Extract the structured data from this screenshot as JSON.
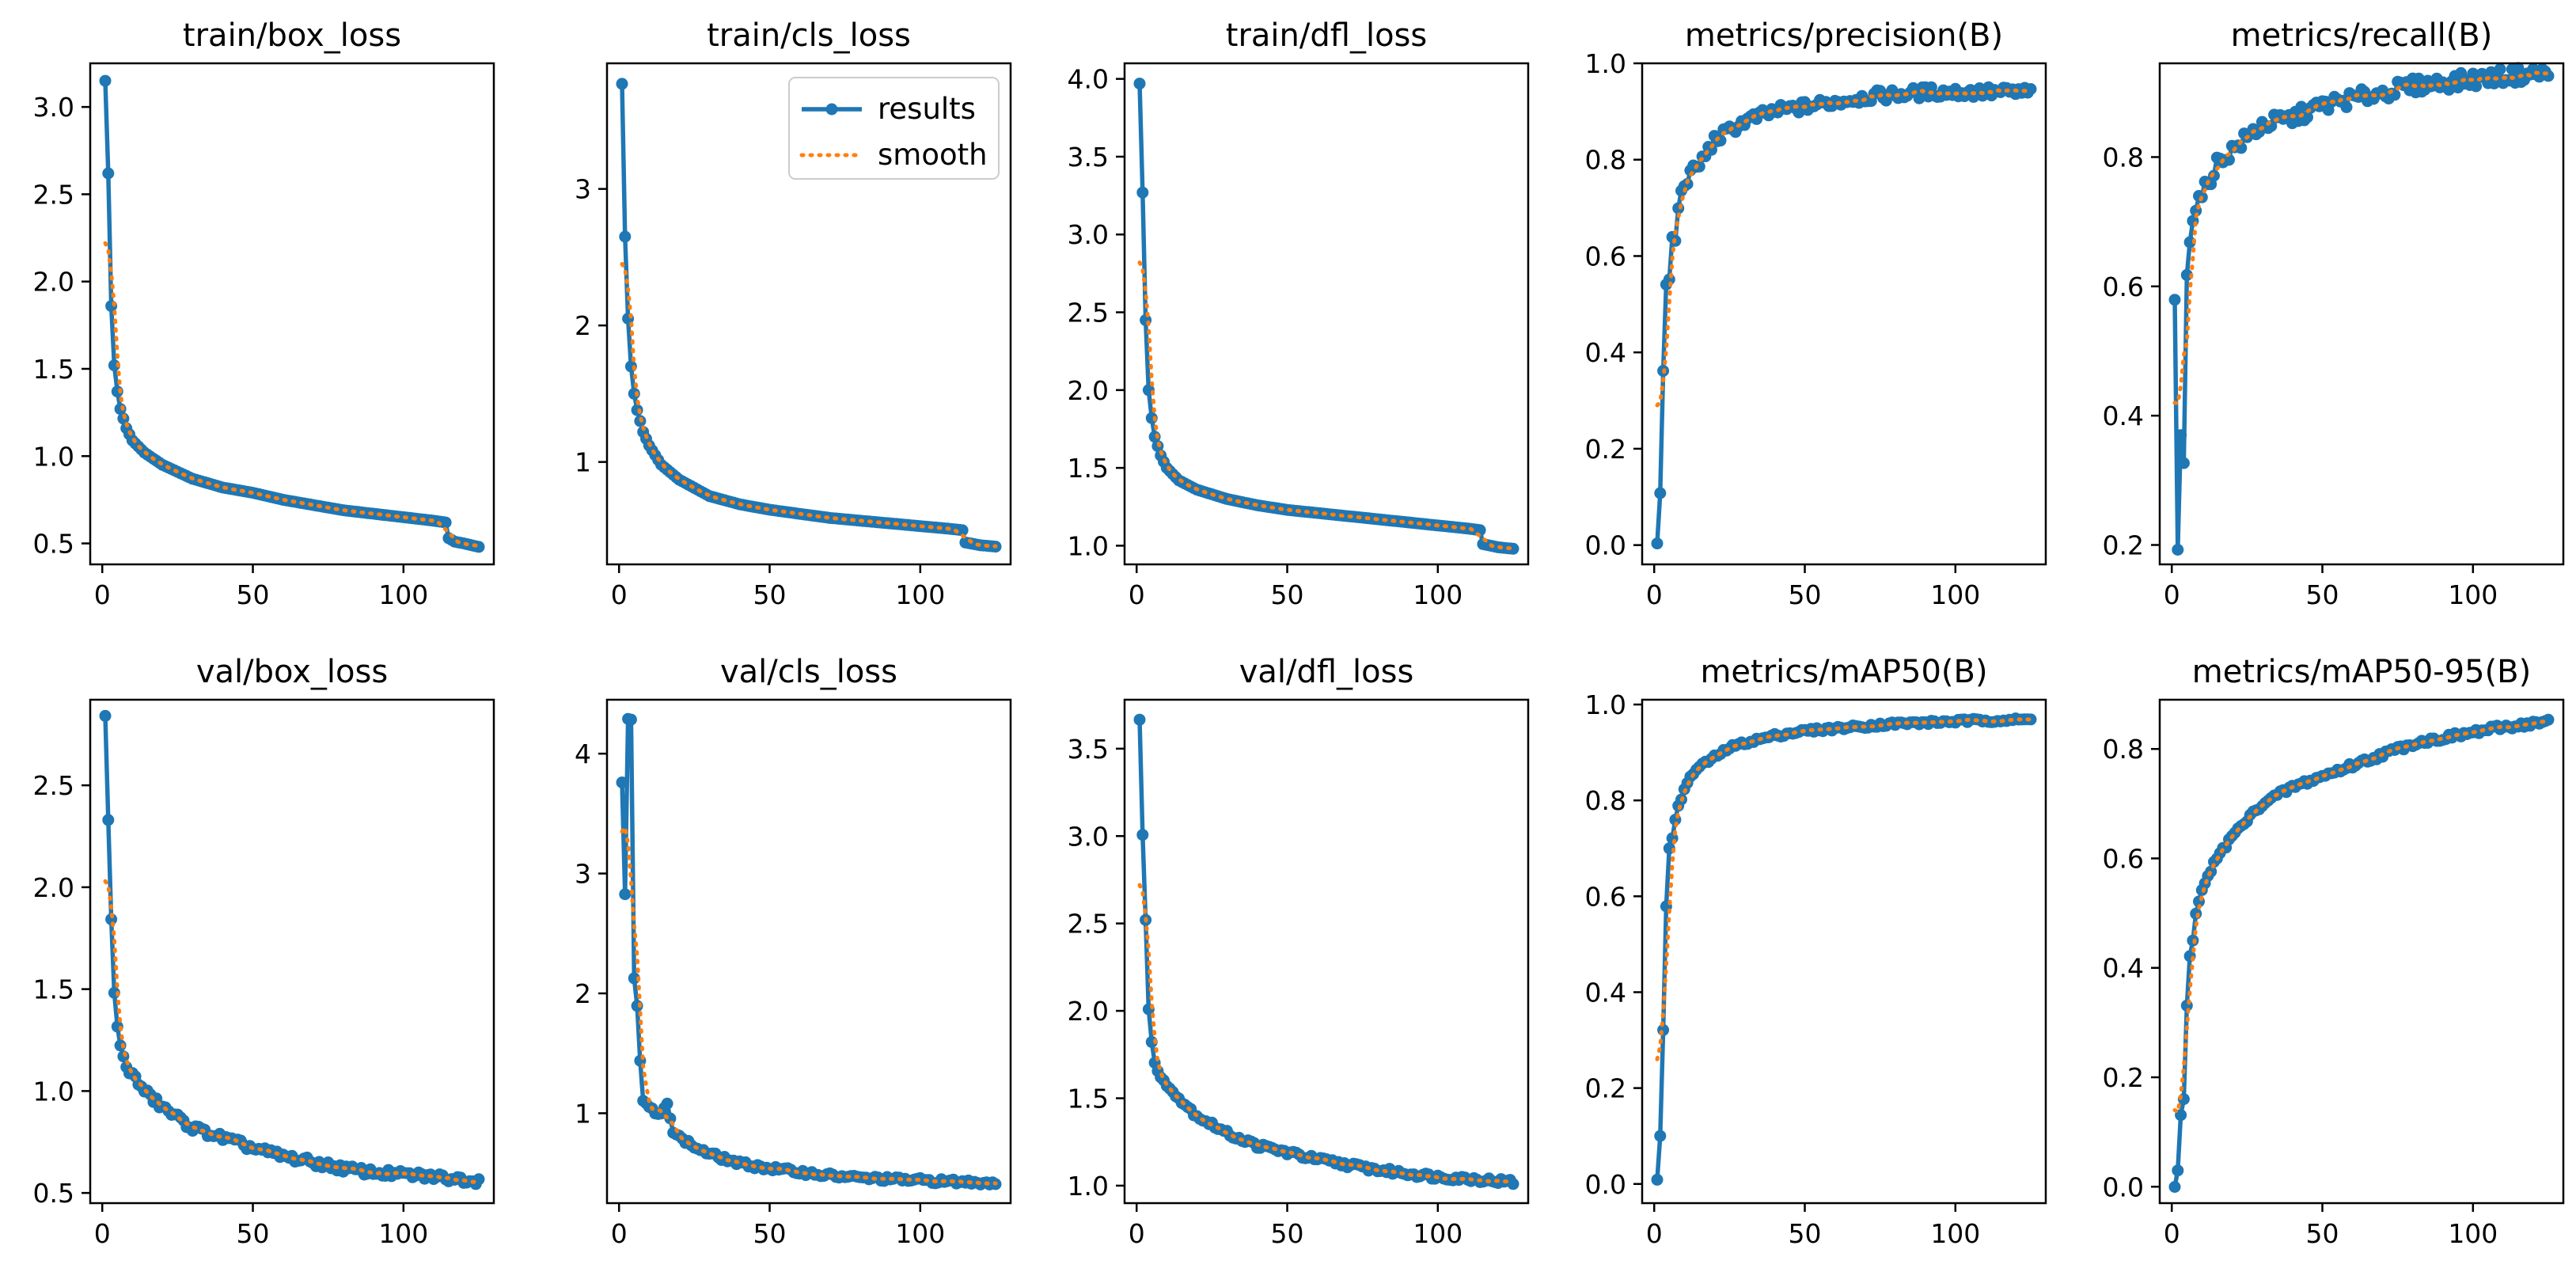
{
  "colors": {
    "results": "#1f77b4",
    "smooth": "#ff7f0e"
  },
  "legend": {
    "placement": "top-right",
    "subplot": 1,
    "entries": [
      "results",
      "smooth"
    ]
  },
  "chart_data": [
    {
      "type": "line",
      "title": "train/box_loss",
      "xlabel": "",
      "ylabel": "",
      "xlim": [
        -4,
        130
      ],
      "ylim": [
        0.38,
        3.25
      ],
      "xticks": [
        0,
        50,
        100
      ],
      "yticks": [
        0.5,
        1.0,
        1.5,
        2.0,
        2.5,
        3.0
      ],
      "yticklabels": [
        "0.5",
        "1.0",
        "1.5",
        "2.0",
        "2.5",
        "3.0"
      ],
      "anchors": [
        [
          1,
          3.15
        ],
        [
          2,
          2.62
        ],
        [
          3,
          1.86
        ],
        [
          4,
          1.52
        ],
        [
          5,
          1.37
        ],
        [
          6,
          1.27
        ],
        [
          8,
          1.16
        ],
        [
          10,
          1.09
        ],
        [
          14,
          1.02
        ],
        [
          20,
          0.95
        ],
        [
          30,
          0.87
        ],
        [
          40,
          0.82
        ],
        [
          50,
          0.79
        ],
        [
          60,
          0.75
        ],
        [
          70,
          0.72
        ],
        [
          80,
          0.69
        ],
        [
          90,
          0.67
        ],
        [
          100,
          0.65
        ],
        [
          110,
          0.63
        ],
        [
          114,
          0.62
        ],
        [
          115,
          0.53
        ],
        [
          117,
          0.51
        ],
        [
          120,
          0.5
        ],
        [
          125,
          0.48
        ]
      ],
      "smooth_start": 2.22,
      "noise": 0
    },
    {
      "type": "line",
      "title": "train/cls_loss",
      "xlabel": "",
      "ylabel": "",
      "xlim": [
        -4,
        130
      ],
      "ylim": [
        0.25,
        3.92
      ],
      "xticks": [
        0,
        50,
        100
      ],
      "yticks": [
        1,
        2,
        3
      ],
      "yticklabels": [
        "1",
        "2",
        "3"
      ],
      "anchors": [
        [
          1,
          3.77
        ],
        [
          2,
          2.65
        ],
        [
          3,
          2.05
        ],
        [
          4,
          1.7
        ],
        [
          5,
          1.5
        ],
        [
          6,
          1.38
        ],
        [
          8,
          1.22
        ],
        [
          10,
          1.12
        ],
        [
          14,
          0.98
        ],
        [
          20,
          0.87
        ],
        [
          30,
          0.75
        ],
        [
          40,
          0.69
        ],
        [
          50,
          0.65
        ],
        [
          60,
          0.62
        ],
        [
          70,
          0.59
        ],
        [
          80,
          0.57
        ],
        [
          90,
          0.55
        ],
        [
          100,
          0.53
        ],
        [
          110,
          0.51
        ],
        [
          114,
          0.5
        ],
        [
          115,
          0.41
        ],
        [
          120,
          0.39
        ],
        [
          125,
          0.38
        ]
      ],
      "smooth_start": 2.45,
      "noise": 0
    },
    {
      "type": "line",
      "title": "train/dfl_loss",
      "xlabel": "",
      "ylabel": "",
      "xlim": [
        -4,
        130
      ],
      "ylim": [
        0.88,
        4.1
      ],
      "xticks": [
        0,
        50,
        100
      ],
      "yticks": [
        1.0,
        1.5,
        2.0,
        2.5,
        3.0,
        3.5,
        4.0
      ],
      "yticklabels": [
        "1.0",
        "1.5",
        "2.0",
        "2.5",
        "3.0",
        "3.5",
        "4.0"
      ],
      "anchors": [
        [
          1,
          3.97
        ],
        [
          2,
          3.27
        ],
        [
          3,
          2.45
        ],
        [
          4,
          2.0
        ],
        [
          5,
          1.82
        ],
        [
          6,
          1.7
        ],
        [
          8,
          1.58
        ],
        [
          10,
          1.5
        ],
        [
          14,
          1.42
        ],
        [
          20,
          1.36
        ],
        [
          30,
          1.3
        ],
        [
          40,
          1.26
        ],
        [
          50,
          1.23
        ],
        [
          60,
          1.21
        ],
        [
          70,
          1.19
        ],
        [
          80,
          1.17
        ],
        [
          90,
          1.15
        ],
        [
          100,
          1.13
        ],
        [
          110,
          1.11
        ],
        [
          114,
          1.1
        ],
        [
          115,
          1.01
        ],
        [
          120,
          0.99
        ],
        [
          125,
          0.98
        ]
      ],
      "smooth_start": 2.82,
      "noise": 0
    },
    {
      "type": "line",
      "title": "metrics/precision(B)",
      "xlabel": "",
      "ylabel": "",
      "xlim": [
        -4,
        130
      ],
      "ylim": [
        -0.04,
        1.0
      ],
      "xticks": [
        0,
        50,
        100
      ],
      "yticks": [
        0.0,
        0.2,
        0.4,
        0.6,
        0.8,
        1.0
      ],
      "yticklabels": [
        "0.0",
        "0.2",
        "0.4",
        "0.6",
        "0.8",
        "1.0"
      ],
      "anchors": [
        [
          1,
          0.0
        ],
        [
          2,
          0.11
        ],
        [
          3,
          0.36
        ],
        [
          4,
          0.54
        ],
        [
          5,
          0.55
        ],
        [
          6,
          0.64
        ],
        [
          7,
          0.63
        ],
        [
          8,
          0.7
        ],
        [
          9,
          0.73
        ],
        [
          10,
          0.75
        ],
        [
          12,
          0.77
        ],
        [
          15,
          0.79
        ],
        [
          20,
          0.84
        ],
        [
          25,
          0.86
        ],
        [
          30,
          0.88
        ],
        [
          40,
          0.9
        ],
        [
          50,
          0.91
        ],
        [
          60,
          0.92
        ],
        [
          70,
          0.93
        ],
        [
          80,
          0.935
        ],
        [
          90,
          0.94
        ],
        [
          100,
          0.94
        ],
        [
          110,
          0.94
        ],
        [
          125,
          0.94
        ]
      ],
      "smooth_start": 0.29,
      "noise": 0.012
    },
    {
      "type": "line",
      "title": "metrics/recall(B)",
      "xlabel": "",
      "ylabel": "",
      "xlim": [
        -4,
        130
      ],
      "ylim": [
        0.17,
        0.945
      ],
      "xticks": [
        0,
        50,
        100
      ],
      "yticks": [
        0.2,
        0.4,
        0.6,
        0.8
      ],
      "yticklabels": [
        "0.2",
        "0.4",
        "0.6",
        "0.8"
      ],
      "anchors": [
        [
          1,
          0.58
        ],
        [
          2,
          0.19
        ],
        [
          3,
          0.37
        ],
        [
          4,
          0.33
        ],
        [
          5,
          0.62
        ],
        [
          6,
          0.67
        ],
        [
          7,
          0.7
        ],
        [
          8,
          0.72
        ],
        [
          10,
          0.74
        ],
        [
          12,
          0.76
        ],
        [
          15,
          0.79
        ],
        [
          20,
          0.81
        ],
        [
          25,
          0.83
        ],
        [
          30,
          0.85
        ],
        [
          40,
          0.86
        ],
        [
          50,
          0.88
        ],
        [
          60,
          0.89
        ],
        [
          70,
          0.9
        ],
        [
          80,
          0.91
        ],
        [
          90,
          0.915
        ],
        [
          100,
          0.92
        ],
        [
          110,
          0.925
        ],
        [
          125,
          0.93
        ]
      ],
      "smooth_start": 0.42,
      "noise": 0.012
    },
    {
      "type": "line",
      "title": "val/box_loss",
      "xlabel": "",
      "ylabel": "",
      "xlim": [
        -4,
        130
      ],
      "ylim": [
        0.45,
        2.92
      ],
      "xticks": [
        0,
        50,
        100
      ],
      "yticks": [
        0.5,
        1.0,
        1.5,
        2.0,
        2.5
      ],
      "yticklabels": [
        "0.5",
        "1.0",
        "1.5",
        "2.0",
        "2.5"
      ],
      "anchors": [
        [
          1,
          2.84
        ],
        [
          2,
          2.33
        ],
        [
          3,
          1.84
        ],
        [
          4,
          1.48
        ],
        [
          5,
          1.32
        ],
        [
          6,
          1.22
        ],
        [
          8,
          1.12
        ],
        [
          10,
          1.08
        ],
        [
          12,
          1.04
        ],
        [
          14,
          1.0
        ],
        [
          20,
          0.92
        ],
        [
          30,
          0.82
        ],
        [
          40,
          0.77
        ],
        [
          50,
          0.72
        ],
        [
          60,
          0.68
        ],
        [
          70,
          0.65
        ],
        [
          80,
          0.62
        ],
        [
          90,
          0.6
        ],
        [
          100,
          0.59
        ],
        [
          110,
          0.58
        ],
        [
          125,
          0.56
        ]
      ],
      "smooth_start": 2.03,
      "noise": 0.018
    },
    {
      "type": "line",
      "title": "val/cls_loss",
      "xlabel": "",
      "ylabel": "",
      "xlim": [
        -4,
        130
      ],
      "ylim": [
        0.25,
        4.45
      ],
      "xticks": [
        0,
        50,
        100
      ],
      "yticks": [
        1,
        2,
        3,
        4
      ],
      "yticklabels": [
        "1",
        "2",
        "3",
        "4"
      ],
      "anchors": [
        [
          1,
          3.76
        ],
        [
          2,
          2.83
        ],
        [
          3,
          4.29
        ],
        [
          4,
          4.29
        ],
        [
          5,
          2.13
        ],
        [
          6,
          1.9
        ],
        [
          7,
          1.44
        ],
        [
          8,
          1.1
        ],
        [
          10,
          1.05
        ],
        [
          12,
          1.0
        ],
        [
          14,
          0.98
        ],
        [
          16,
          1.1
        ],
        [
          18,
          0.85
        ],
        [
          20,
          0.8
        ],
        [
          25,
          0.72
        ],
        [
          30,
          0.66
        ],
        [
          40,
          0.58
        ],
        [
          50,
          0.54
        ],
        [
          60,
          0.51
        ],
        [
          70,
          0.48
        ],
        [
          80,
          0.46
        ],
        [
          90,
          0.45
        ],
        [
          100,
          0.44
        ],
        [
          110,
          0.43
        ],
        [
          125,
          0.42
        ]
      ],
      "smooth_start": 3.35,
      "noise": 0.02
    },
    {
      "type": "line",
      "title": "val/dfl_loss",
      "xlabel": "",
      "ylabel": "",
      "xlim": [
        -4,
        130
      ],
      "ylim": [
        0.9,
        3.78
      ],
      "xticks": [
        0,
        50,
        100
      ],
      "yticks": [
        1.0,
        1.5,
        2.0,
        2.5,
        3.0,
        3.5
      ],
      "yticklabels": [
        "1.0",
        "1.5",
        "2.0",
        "2.5",
        "3.0",
        "3.5"
      ],
      "anchors": [
        [
          1,
          3.67
        ],
        [
          2,
          3.01
        ],
        [
          3,
          2.52
        ],
        [
          4,
          2.01
        ],
        [
          5,
          1.82
        ],
        [
          6,
          1.7
        ],
        [
          8,
          1.62
        ],
        [
          10,
          1.57
        ],
        [
          12,
          1.55
        ],
        [
          14,
          1.5
        ],
        [
          20,
          1.4
        ],
        [
          30,
          1.3
        ],
        [
          40,
          1.23
        ],
        [
          50,
          1.19
        ],
        [
          60,
          1.15
        ],
        [
          70,
          1.12
        ],
        [
          80,
          1.09
        ],
        [
          90,
          1.07
        ],
        [
          100,
          1.05
        ],
        [
          110,
          1.04
        ],
        [
          125,
          1.02
        ]
      ],
      "smooth_start": 2.72,
      "noise": 0.015
    },
    {
      "type": "line",
      "title": "metrics/mAP50(B)",
      "xlabel": "",
      "ylabel": "",
      "xlim": [
        -4,
        130
      ],
      "ylim": [
        -0.04,
        1.01
      ],
      "xticks": [
        0,
        50,
        100
      ],
      "yticks": [
        0.0,
        0.2,
        0.4,
        0.6,
        0.8,
        1.0
      ],
      "yticklabels": [
        "0.0",
        "0.2",
        "0.4",
        "0.6",
        "0.8",
        "1.0"
      ],
      "anchors": [
        [
          1,
          0.01
        ],
        [
          2,
          0.1
        ],
        [
          3,
          0.32
        ],
        [
          4,
          0.58
        ],
        [
          5,
          0.7
        ],
        [
          6,
          0.72
        ],
        [
          7,
          0.76
        ],
        [
          8,
          0.79
        ],
        [
          10,
          0.82
        ],
        [
          12,
          0.85
        ],
        [
          15,
          0.87
        ],
        [
          20,
          0.89
        ],
        [
          25,
          0.91
        ],
        [
          30,
          0.92
        ],
        [
          40,
          0.935
        ],
        [
          50,
          0.945
        ],
        [
          60,
          0.95
        ],
        [
          70,
          0.955
        ],
        [
          80,
          0.96
        ],
        [
          90,
          0.962
        ],
        [
          100,
          0.965
        ],
        [
          110,
          0.967
        ],
        [
          125,
          0.968
        ]
      ],
      "smooth_start": 0.26,
      "noise": 0.004
    },
    {
      "type": "line",
      "title": "metrics/mAP50-95(B)",
      "xlabel": "",
      "ylabel": "",
      "xlim": [
        -4,
        130
      ],
      "ylim": [
        -0.03,
        0.89
      ],
      "xticks": [
        0,
        50,
        100
      ],
      "yticks": [
        0.0,
        0.2,
        0.4,
        0.6,
        0.8
      ],
      "yticklabels": [
        "0.0",
        "0.2",
        "0.4",
        "0.6",
        "0.8"
      ],
      "anchors": [
        [
          1,
          0.0
        ],
        [
          2,
          0.03
        ],
        [
          3,
          0.13
        ],
        [
          4,
          0.16
        ],
        [
          5,
          0.33
        ],
        [
          6,
          0.42
        ],
        [
          7,
          0.45
        ],
        [
          8,
          0.5
        ],
        [
          10,
          0.54
        ],
        [
          12,
          0.57
        ],
        [
          15,
          0.6
        ],
        [
          20,
          0.64
        ],
        [
          25,
          0.67
        ],
        [
          30,
          0.7
        ],
        [
          40,
          0.73
        ],
        [
          50,
          0.75
        ],
        [
          60,
          0.77
        ],
        [
          70,
          0.79
        ],
        [
          80,
          0.81
        ],
        [
          90,
          0.82
        ],
        [
          100,
          0.83
        ],
        [
          110,
          0.84
        ],
        [
          125,
          0.85
        ]
      ],
      "smooth_start": 0.14,
      "noise": 0.005
    }
  ]
}
